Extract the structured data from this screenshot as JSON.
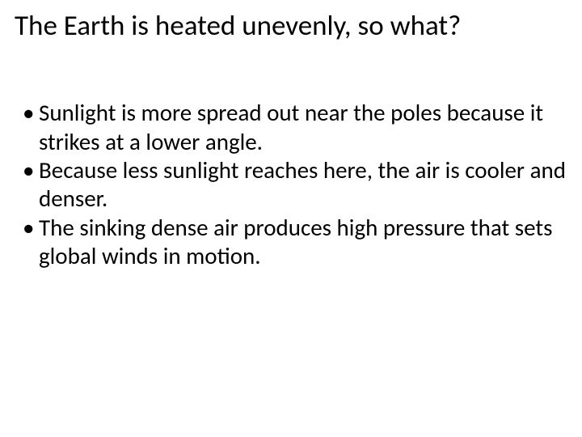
{
  "title": "The Earth is heated unevenly, so what?",
  "bullets": [
    "Sunlight is more spread out near the poles because it strikes at a lower angle.",
    "Because less sunlight reaches here, the air is cooler and denser.",
    "The sinking dense air produces high pressure that sets global winds in motion."
  ],
  "colors": {
    "background": "#ffffff",
    "text": "#000000"
  },
  "typography": {
    "title_fontsize": 35,
    "body_fontsize": 29,
    "font_family": "Calibri"
  }
}
